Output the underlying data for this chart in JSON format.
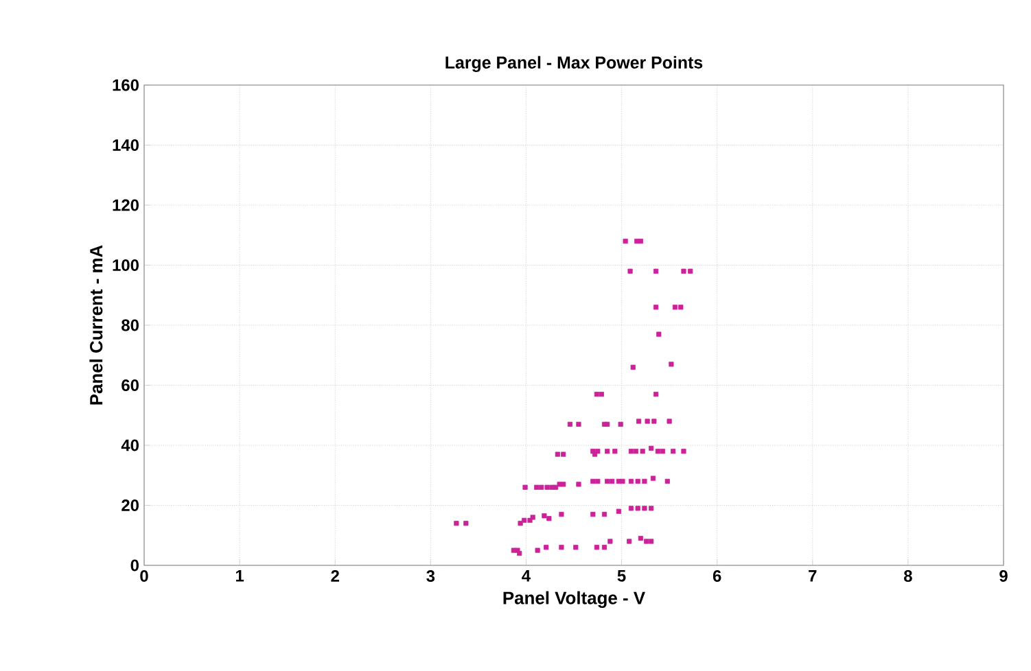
{
  "chart_data": {
    "type": "scatter",
    "title": "Large Panel - Max Power Points",
    "xlabel": "Panel Voltage - V",
    "ylabel": "Panel Current - mA",
    "xlim": [
      0,
      9
    ],
    "xticks": [
      0,
      1,
      2,
      3,
      4,
      5,
      6,
      7,
      8,
      9
    ],
    "ylim": [
      0,
      160
    ],
    "yticks": [
      0,
      20,
      40,
      60,
      80,
      100,
      120,
      140,
      160
    ],
    "grid": true,
    "marker": "square",
    "series": [
      {
        "color": "#cc2299",
        "x": [
          5.04,
          5.16,
          5.2,
          5.09,
          5.36,
          5.65,
          5.72,
          5.36,
          5.56,
          5.62,
          5.39,
          5.12,
          5.52,
          4.74,
          4.79,
          5.36,
          4.46,
          4.55,
          4.82,
          4.85,
          4.99,
          5.18,
          5.27,
          5.34,
          5.5,
          4.33,
          4.39,
          4.7,
          4.75,
          4.85,
          4.93,
          5.1,
          5.15,
          5.22,
          5.31,
          5.38,
          5.43,
          5.54,
          5.65,
          4.72,
          4.35,
          4.39,
          4.55,
          4.7,
          4.75,
          4.85,
          4.9,
          4.97,
          5.01,
          5.1,
          5.17,
          5.24,
          5.33,
          5.48,
          3.99,
          4.11,
          4.16,
          4.22,
          4.27,
          4.31,
          5.1,
          5.17,
          5.24,
          5.31,
          4.37,
          4.7,
          4.82,
          4.97,
          4.19,
          4.24,
          4.04,
          4.07,
          3.94,
          3.98,
          3.27,
          3.37,
          4.88,
          5.08,
          5.2,
          5.26,
          5.31,
          4.12,
          4.21,
          4.37,
          4.52,
          4.74,
          4.82,
          3.87,
          3.91,
          3.93
        ],
        "values": [
          108,
          108,
          108,
          98,
          98,
          98,
          98,
          86,
          86,
          86,
          77,
          66,
          67,
          57,
          57,
          57,
          47,
          47,
          47,
          47,
          47,
          48,
          48,
          48,
          48,
          37,
          37,
          38,
          38,
          38,
          38,
          38,
          38,
          38,
          39,
          38,
          38,
          38,
          38,
          37,
          27,
          27,
          27,
          28,
          28,
          28,
          28,
          28,
          28,
          28,
          28,
          28,
          29,
          28,
          26,
          26,
          26,
          26,
          26,
          26,
          19,
          19,
          19,
          19,
          17,
          17,
          17,
          18,
          16.5,
          15.6,
          15,
          16,
          14,
          15,
          14,
          14,
          8,
          8,
          9,
          8,
          8,
          5,
          6,
          6,
          6,
          6,
          6,
          5,
          5,
          4
        ]
      }
    ]
  }
}
